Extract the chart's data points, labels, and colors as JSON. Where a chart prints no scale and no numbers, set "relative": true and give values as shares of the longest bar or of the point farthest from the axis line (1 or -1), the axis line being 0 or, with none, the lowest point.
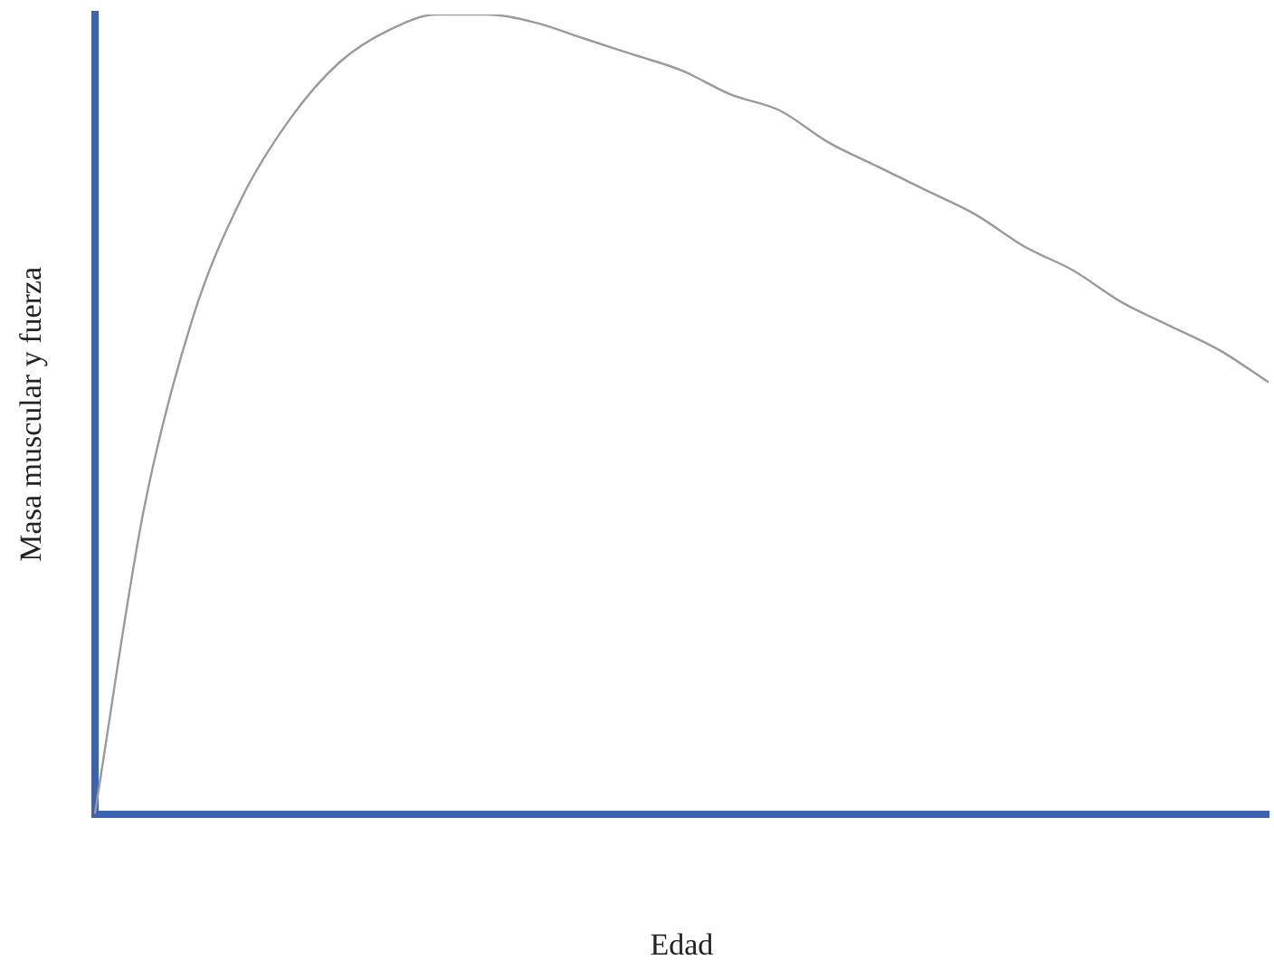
{
  "chart_data": {
    "type": "line",
    "relative": true,
    "xlabel": "Edad",
    "ylabel": "Masa muscular y fuerza",
    "categories": [
      null,
      null,
      null,
      null,
      null,
      null,
      null,
      null,
      null,
      null,
      null,
      null,
      null,
      null,
      null,
      null,
      null,
      null,
      null,
      null,
      null,
      null,
      null,
      null,
      null
    ],
    "series": [
      {
        "color": "#9a9a9a",
        "values": [
          0,
          0.38,
          0.62,
          0.77,
          0.87,
          0.94,
          0.98,
          1.0,
          1.0,
          0.99,
          0.97,
          0.95,
          0.93,
          0.9,
          0.88,
          0.84,
          0.81,
          0.78,
          0.75,
          0.71,
          0.68,
          0.64,
          0.61,
          0.58,
          0.54
        ]
      }
    ],
    "grid": false,
    "marker": "none",
    "line_style": "solid"
  }
}
